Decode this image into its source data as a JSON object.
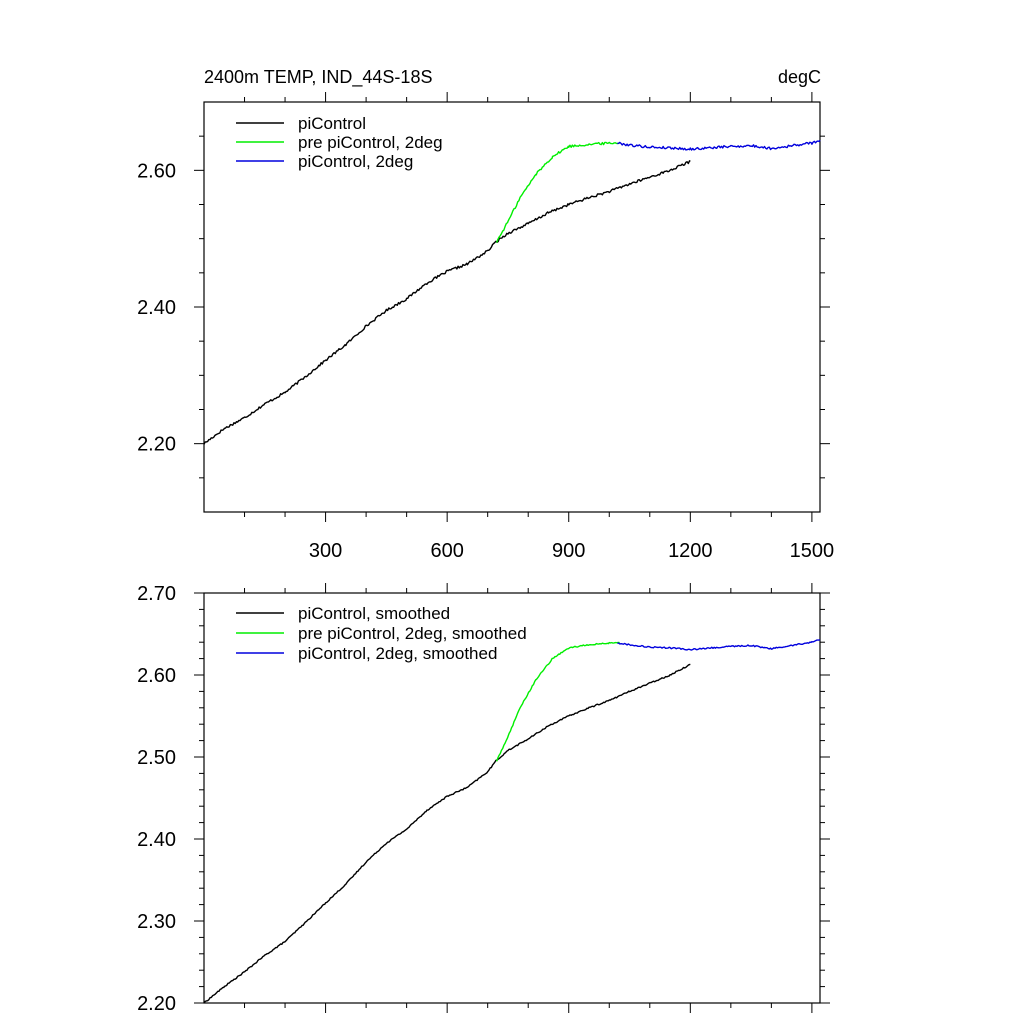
{
  "colors": {
    "piControl": "#000000",
    "pre_piControl_2deg": "#00ee00",
    "piControl_2deg": "#0000dd",
    "axis": "#000000",
    "background": "#ffffff"
  },
  "chart_data": [
    {
      "id": "top",
      "type": "line",
      "title": "2400m TEMP, IND_44S-18S",
      "units_label": "degC",
      "xlim": [
        0,
        1520
      ],
      "ylim": [
        2.1,
        2.7
      ],
      "x_ticks": [
        300,
        600,
        900,
        1200,
        1500
      ],
      "x_tick_labels": [
        "300",
        "600",
        "900",
        "1200",
        "1500"
      ],
      "x_minor_step": 100,
      "y_ticks": [
        2.2,
        2.4,
        2.6
      ],
      "y_tick_labels": [
        "2.20",
        "2.40",
        "2.60"
      ],
      "y_minor_step": 0.05,
      "legend_position": "top-left",
      "noise": 0.0018,
      "series": [
        {
          "name": "piControl",
          "color_key": "piControl",
          "x": [
            0,
            50,
            100,
            150,
            200,
            250,
            300,
            350,
            400,
            450,
            500,
            550,
            600,
            650,
            700,
            720,
            750,
            800,
            850,
            900,
            950,
            1000,
            1050,
            1100,
            1150,
            1200
          ],
          "y": [
            2.2,
            2.222,
            2.238,
            2.258,
            2.275,
            2.298,
            2.322,
            2.345,
            2.372,
            2.395,
            2.412,
            2.435,
            2.452,
            2.463,
            2.482,
            2.495,
            2.508,
            2.522,
            2.538,
            2.55,
            2.56,
            2.569,
            2.58,
            2.59,
            2.6,
            2.613
          ]
        },
        {
          "name": "pre piControl, 2deg",
          "color_key": "pre_piControl_2deg",
          "x": [
            722,
            750,
            780,
            820,
            860,
            900,
            950,
            1000,
            1025
          ],
          "y": [
            2.495,
            2.525,
            2.56,
            2.595,
            2.62,
            2.635,
            2.638,
            2.64,
            2.64
          ]
        },
        {
          "name": "piControl, 2deg",
          "color_key": "piControl_2deg",
          "x": [
            1020,
            1050,
            1100,
            1150,
            1200,
            1250,
            1300,
            1350,
            1400,
            1450,
            1500,
            1520
          ],
          "y": [
            2.64,
            2.637,
            2.634,
            2.633,
            2.631,
            2.633,
            2.635,
            2.636,
            2.632,
            2.636,
            2.64,
            2.644
          ]
        }
      ]
    },
    {
      "id": "bottom",
      "type": "line",
      "title": "",
      "xlim": [
        0,
        1520
      ],
      "ylim": [
        2.2,
        2.7
      ],
      "x_ticks": [
        300,
        600,
        900,
        1200,
        1500
      ],
      "x_tick_labels": [],
      "x_minor_step": 100,
      "y_ticks": [
        2.2,
        2.3,
        2.4,
        2.5,
        2.6,
        2.7
      ],
      "y_tick_labels": [
        "2.20",
        "2.30",
        "2.40",
        "2.50",
        "2.60",
        "2.70"
      ],
      "y_minor_step": 0.02,
      "legend_position": "top-left",
      "noise": 0.0008,
      "series": [
        {
          "name": "piControl, smoothed",
          "color_key": "piControl",
          "x": [
            0,
            25,
            50,
            100,
            150,
            200,
            250,
            300,
            350,
            400,
            450,
            500,
            550,
            600,
            650,
            700,
            720,
            750,
            800,
            850,
            900,
            950,
            1000,
            1050,
            1100,
            1150,
            1200
          ],
          "y": [
            2.2,
            2.21,
            2.22,
            2.238,
            2.258,
            2.275,
            2.298,
            2.322,
            2.345,
            2.372,
            2.395,
            2.412,
            2.435,
            2.452,
            2.463,
            2.482,
            2.495,
            2.508,
            2.522,
            2.538,
            2.55,
            2.56,
            2.569,
            2.58,
            2.59,
            2.6,
            2.613
          ]
        },
        {
          "name": "pre piControl, 2deg, smoothed",
          "color_key": "pre_piControl_2deg",
          "x": [
            722,
            750,
            780,
            820,
            860,
            900,
            950,
            1000,
            1025
          ],
          "y": [
            2.495,
            2.525,
            2.56,
            2.595,
            2.62,
            2.633,
            2.637,
            2.639,
            2.639
          ]
        },
        {
          "name": "piControl, 2deg, smoothed",
          "color_key": "piControl_2deg",
          "x": [
            1020,
            1050,
            1100,
            1150,
            1200,
            1250,
            1300,
            1350,
            1400,
            1450,
            1500,
            1520
          ],
          "y": [
            2.639,
            2.637,
            2.634,
            2.633,
            2.631,
            2.633,
            2.635,
            2.636,
            2.632,
            2.636,
            2.64,
            2.643
          ]
        }
      ]
    }
  ]
}
